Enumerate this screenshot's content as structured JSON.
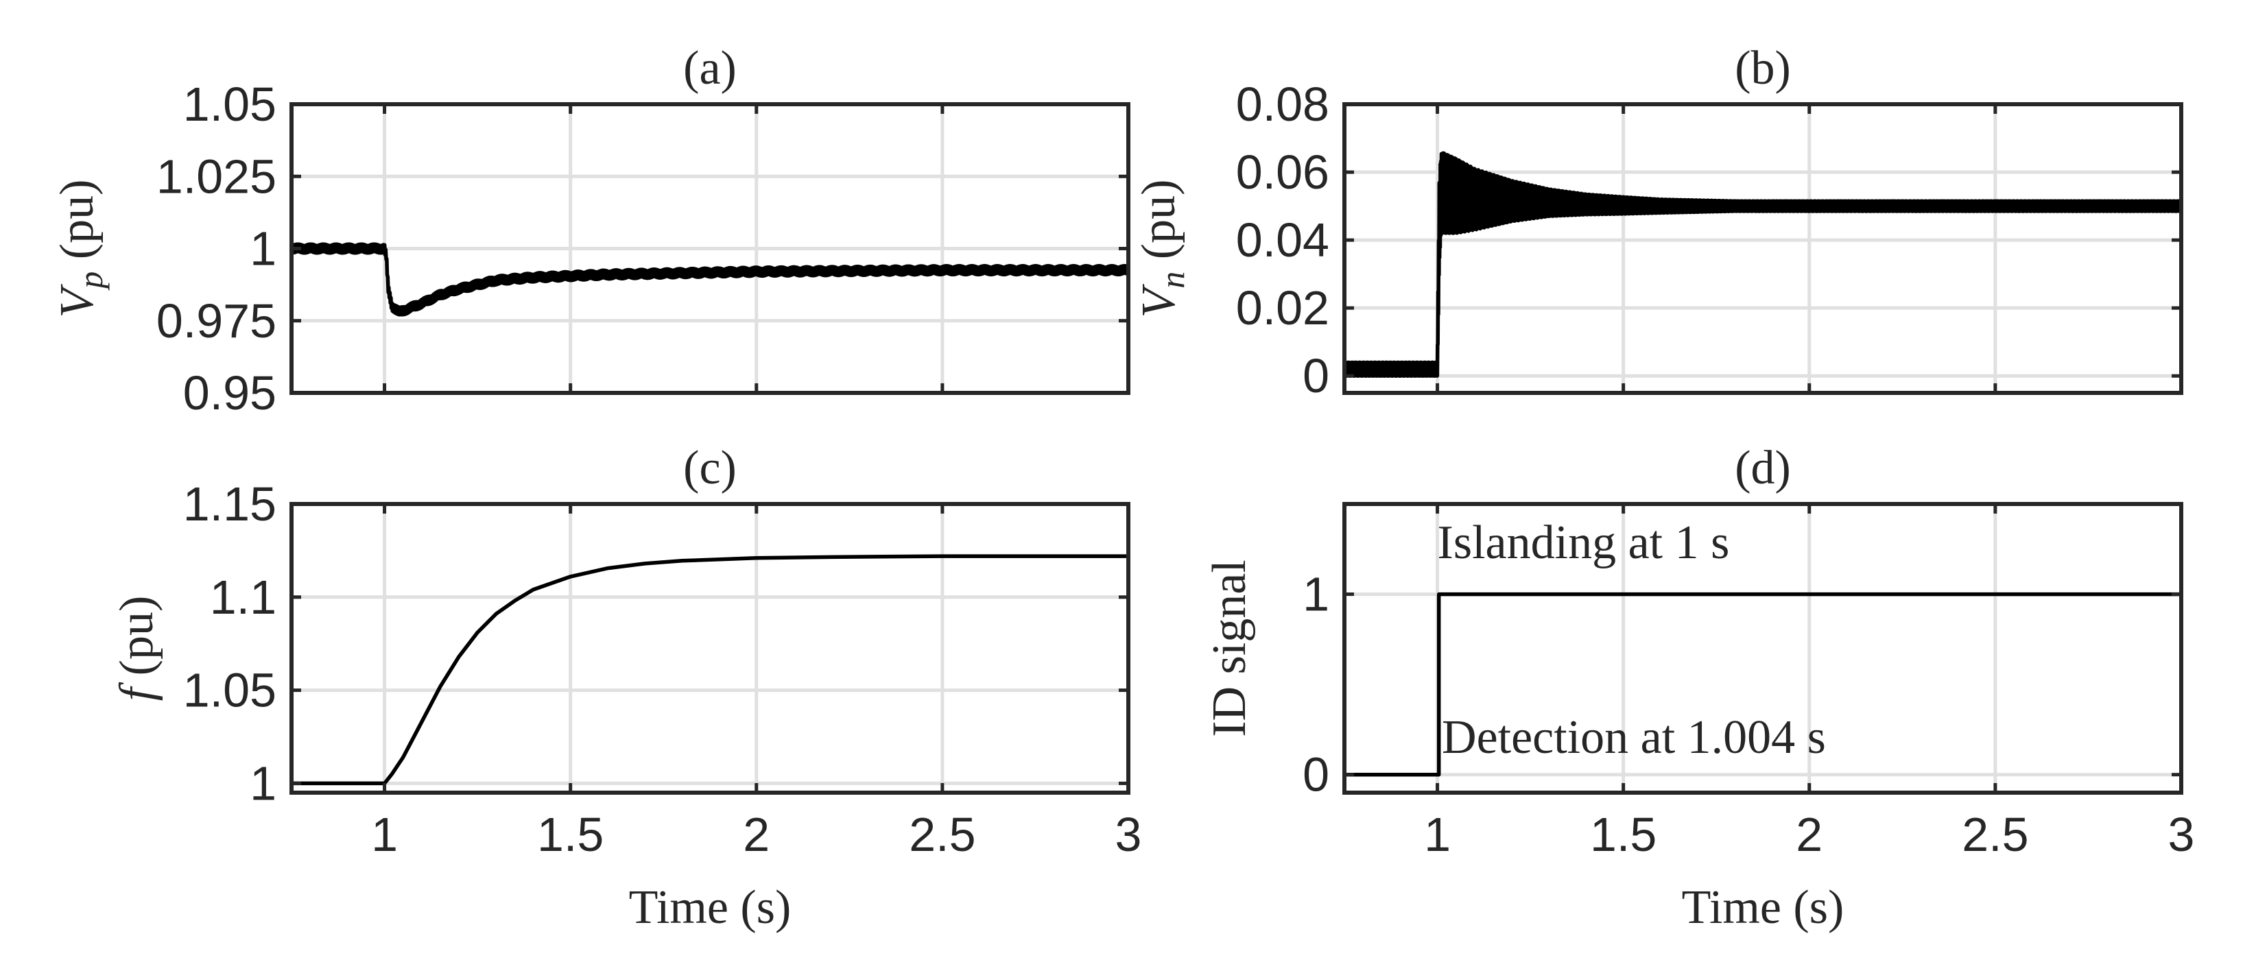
{
  "colors": {
    "trace": "#000000",
    "axis": "#262626",
    "grid": "#e0e0e0",
    "background": "#ffffff"
  },
  "chart_data": [
    {
      "id": "a",
      "type": "line",
      "title": "(a)",
      "xlabel": "",
      "ylabel_main": "V",
      "ylabel_sub": "p",
      "ylabel_unit": " (pu)",
      "xlim": [
        0.75,
        3
      ],
      "ylim": [
        0.95,
        1.05
      ],
      "xticks": [
        1,
        1.5,
        2,
        2.5,
        3
      ],
      "xtick_labels": [
        "",
        "",
        "",
        "",
        ""
      ],
      "yticks": [
        0.95,
        0.975,
        1,
        1.025,
        1.05
      ],
      "ytick_labels": [
        "0.95",
        "0.975",
        "1",
        "1.025",
        "1.05"
      ],
      "grid": true,
      "series": [
        {
          "name": "Vp",
          "x": [
            0.75,
            1.0,
            1.005,
            1.01,
            1.02,
            1.04,
            1.06,
            1.1,
            1.15,
            1.2,
            1.3,
            1.4,
            1.5,
            1.6,
            1.8,
            2.0,
            2.5,
            3.0
          ],
          "values": [
            1.0,
            1.0,
            0.997,
            0.986,
            0.98,
            0.978,
            0.979,
            0.981,
            0.984,
            0.986,
            0.989,
            0.99,
            0.9905,
            0.991,
            0.9915,
            0.992,
            0.9925,
            0.9925
          ],
          "ripple": 0.0015
        }
      ]
    },
    {
      "id": "b",
      "type": "line",
      "title": "(b)",
      "xlabel": "",
      "ylabel_main": "V",
      "ylabel_sub": "n",
      "ylabel_unit": " (pu)",
      "xlim": [
        0.75,
        3
      ],
      "ylim": [
        -0.005,
        0.08
      ],
      "xticks": [
        1,
        1.5,
        2,
        2.5,
        3
      ],
      "xtick_labels": [
        "",
        "",
        "",
        "",
        ""
      ],
      "yticks": [
        0,
        0.02,
        0.04,
        0.06,
        0.08
      ],
      "ytick_labels": [
        "0",
        "0.02",
        "0.04",
        "0.06",
        "0.08"
      ],
      "grid": true,
      "series": [
        {
          "name": "Vn",
          "x": [
            0.75,
            1.0,
            1.005,
            1.01,
            1.05,
            1.1,
            1.2,
            1.3,
            1.4,
            1.5,
            1.6,
            1.8,
            2.0,
            2.5,
            3.0
          ],
          "values": [
            0.002,
            0.002,
            0.045,
            0.054,
            0.053,
            0.052,
            0.0515,
            0.051,
            0.0505,
            0.0502,
            0.05,
            0.05,
            0.05,
            0.05,
            0.05
          ],
          "envelope": [
            0.002,
            0.002,
            0.012,
            0.012,
            0.011,
            0.009,
            0.006,
            0.004,
            0.003,
            0.0025,
            0.002,
            0.0015,
            0.0015,
            0.0015,
            0.0015
          ]
        }
      ]
    },
    {
      "id": "c",
      "type": "line",
      "title": "(c)",
      "xlabel": "Time (s)",
      "ylabel_main": "f",
      "ylabel_sub": "",
      "ylabel_unit": " (pu)",
      "xlim": [
        0.75,
        3
      ],
      "ylim": [
        0.995,
        1.15
      ],
      "xticks": [
        1,
        1.5,
        2,
        2.5,
        3
      ],
      "xtick_labels": [
        "1",
        "1.5",
        "2",
        "2.5",
        "3"
      ],
      "yticks": [
        1,
        1.05,
        1.1,
        1.15
      ],
      "ytick_labels": [
        "1",
        "1.05",
        "1.1",
        "1.15"
      ],
      "grid": true,
      "series": [
        {
          "name": "f",
          "x": [
            0.75,
            1.0,
            1.02,
            1.05,
            1.1,
            1.15,
            1.2,
            1.25,
            1.3,
            1.35,
            1.4,
            1.5,
            1.6,
            1.7,
            1.8,
            2.0,
            2.2,
            2.5,
            3.0
          ],
          "values": [
            1.0,
            1.0,
            1.005,
            1.014,
            1.033,
            1.052,
            1.068,
            1.081,
            1.091,
            1.098,
            1.104,
            1.111,
            1.1155,
            1.118,
            1.1195,
            1.121,
            1.1215,
            1.122,
            1.122
          ]
        }
      ]
    },
    {
      "id": "d",
      "type": "line",
      "title": "(d)",
      "xlabel": "Time (s)",
      "ylabel_main": "ID signal",
      "ylabel_sub": "",
      "ylabel_unit": "",
      "xlim": [
        0.75,
        3
      ],
      "ylim": [
        -0.1,
        1.5
      ],
      "xticks": [
        1,
        1.5,
        2,
        2.5,
        3
      ],
      "xtick_labels": [
        "1",
        "1.5",
        "2",
        "2.5",
        "3"
      ],
      "yticks": [
        0,
        1
      ],
      "ytick_labels": [
        "0",
        "1"
      ],
      "grid": true,
      "series": [
        {
          "name": "ID",
          "x": [
            0.75,
            1.004,
            1.004,
            3.0
          ],
          "values": [
            0,
            0,
            1,
            1
          ]
        }
      ],
      "annotations": [
        {
          "text": "Islanding at 1 s",
          "x": 1.0,
          "y": 1.2
        },
        {
          "text": "Detection at 1.004 s",
          "x": 1.012,
          "y": 0.12
        }
      ]
    }
  ]
}
